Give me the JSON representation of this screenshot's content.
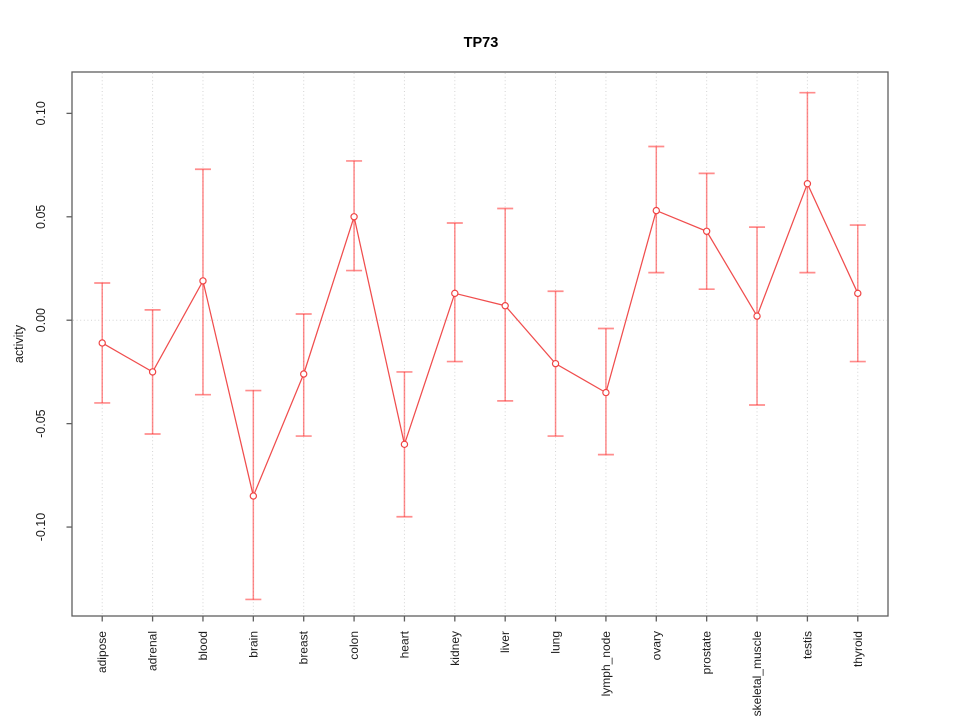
{
  "chart_data": {
    "type": "line",
    "title": "TP73",
    "xlabel": "",
    "ylabel": "activity",
    "categories": [
      "adipose",
      "adrenal",
      "blood",
      "brain",
      "breast",
      "colon",
      "heart",
      "kidney",
      "liver",
      "lung",
      "lymph_node",
      "ovary",
      "prostate",
      "skeletal_muscle",
      "testis",
      "thyroid"
    ],
    "series": [
      {
        "name": "activity",
        "values": [
          -0.011,
          -0.025,
          0.019,
          -0.085,
          -0.026,
          0.05,
          -0.06,
          0.013,
          0.007,
          -0.021,
          -0.035,
          0.053,
          0.043,
          0.002,
          0.066,
          0.013
        ],
        "error_upper": [
          0.018,
          0.005,
          0.073,
          -0.034,
          0.003,
          0.077,
          -0.025,
          0.047,
          0.054,
          0.014,
          -0.004,
          0.084,
          0.071,
          0.045,
          0.11,
          0.046
        ],
        "error_lower": [
          -0.04,
          -0.055,
          -0.036,
          -0.135,
          -0.056,
          0.024,
          -0.095,
          -0.02,
          -0.039,
          -0.056,
          -0.065,
          0.023,
          0.015,
          -0.041,
          0.023,
          -0.02
        ]
      }
    ],
    "ylim": [
      -0.143,
      0.12
    ],
    "yticks": [
      -0.1,
      -0.05,
      0.0,
      0.05,
      0.1
    ],
    "grid": "vertical dotted line at each category, horizontal dotted line at zero",
    "legend": "none",
    "point_style": "open-circle",
    "x_tick_label_rotation": -90,
    "y_tick_label_rotation": -90,
    "colors": {
      "series_line": "#ee3a3a",
      "error_bar": "#ff2e2e",
      "grid": "#d4d4d4",
      "axis": "#5f5f5f",
      "text": "#1c1c1c",
      "background": "#ffffff"
    }
  }
}
